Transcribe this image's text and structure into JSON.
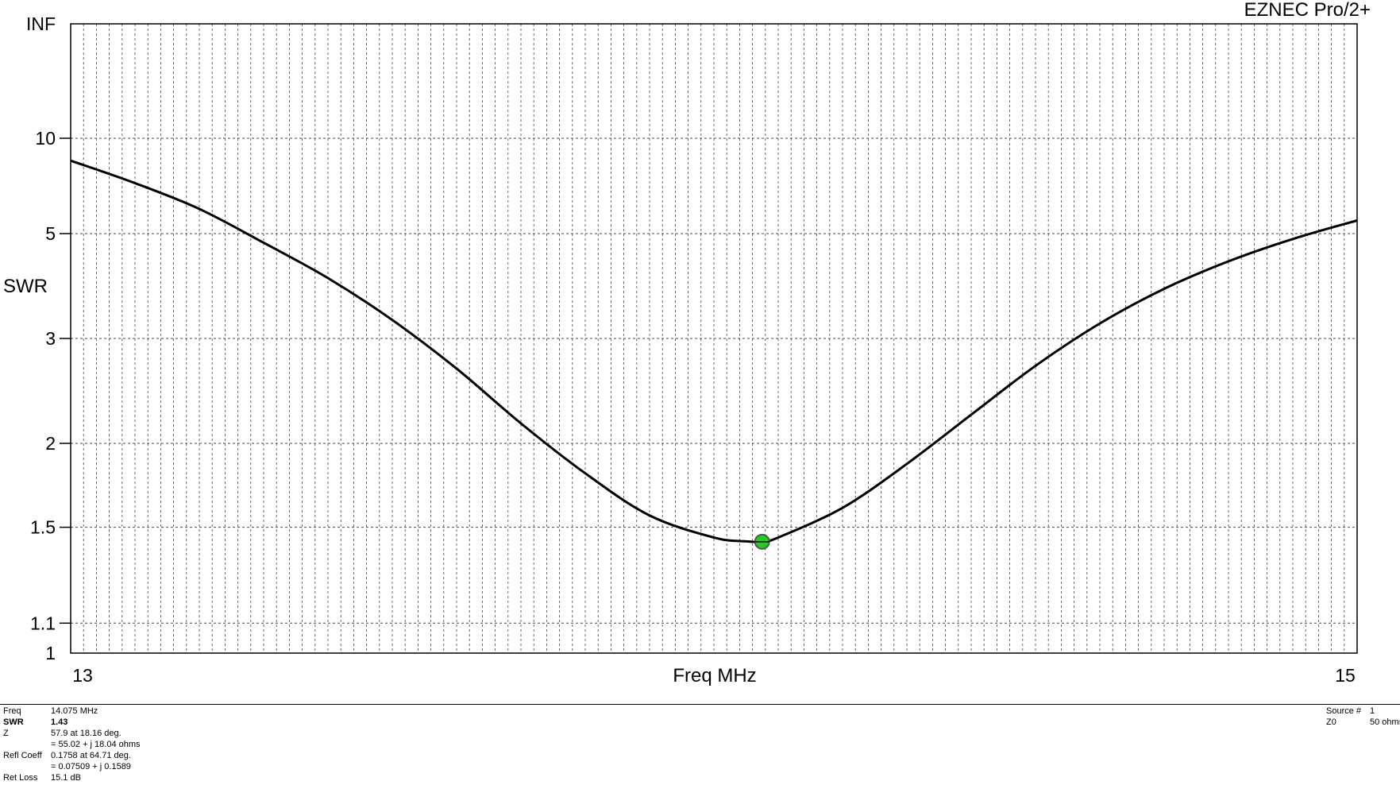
{
  "chart_data": {
    "type": "line",
    "title": "EZNEC Pro/2+",
    "xlabel": "Freq MHz",
    "ylabel": "SWR",
    "x_scale": "linear",
    "y_scale": "reflection",
    "xlim": [
      13,
      15
    ],
    "ylim": [
      1,
      "INF"
    ],
    "grid": true,
    "x_tick_labels": [
      "13",
      "15"
    ],
    "y_tick_labels": [
      "1",
      "1.1",
      "1.5",
      "2",
      "3",
      "5",
      "10",
      "INF"
    ],
    "series": [
      {
        "x": [
          13.0,
          13.1,
          13.2,
          13.3,
          13.4,
          13.5,
          13.6,
          13.7,
          13.8,
          13.9,
          14.0,
          14.05,
          14.075,
          14.1,
          14.2,
          14.3,
          14.4,
          14.5,
          14.6,
          14.7,
          14.8,
          14.9,
          15.0
        ],
        "y": [
          8.2,
          6.9,
          5.8,
          4.75,
          3.95,
          3.25,
          2.65,
          2.15,
          1.8,
          1.56,
          1.45,
          1.432,
          1.43,
          1.45,
          1.6,
          1.86,
          2.22,
          2.68,
          3.2,
          3.75,
          4.3,
          4.85,
          5.4
        ]
      }
    ],
    "marker": {
      "x": 14.075,
      "y": 1.43,
      "color": "#22cc22"
    }
  },
  "info": {
    "left": [
      {
        "label": "Freq",
        "value": "14.075 MHz",
        "bold": false
      },
      {
        "label": "SWR",
        "value": "1.43",
        "bold": true
      },
      {
        "label": "Z",
        "value": "57.9 at 18.16 deg.",
        "bold": false
      },
      {
        "label": "",
        "value": "= 55.02 + j 18.04 ohms",
        "bold": false
      },
      {
        "label": "Refl Coeff",
        "value": "0.1758 at 64.71 deg.",
        "bold": false
      },
      {
        "label": "",
        "value": "= 0.07509 + j 0.1589",
        "bold": false
      },
      {
        "label": "Ret Loss",
        "value": "15.1 dB",
        "bold": false
      }
    ],
    "right": [
      {
        "label": "Source #",
        "value": "1"
      },
      {
        "label": "Z0",
        "value": "50 ohms"
      }
    ]
  }
}
